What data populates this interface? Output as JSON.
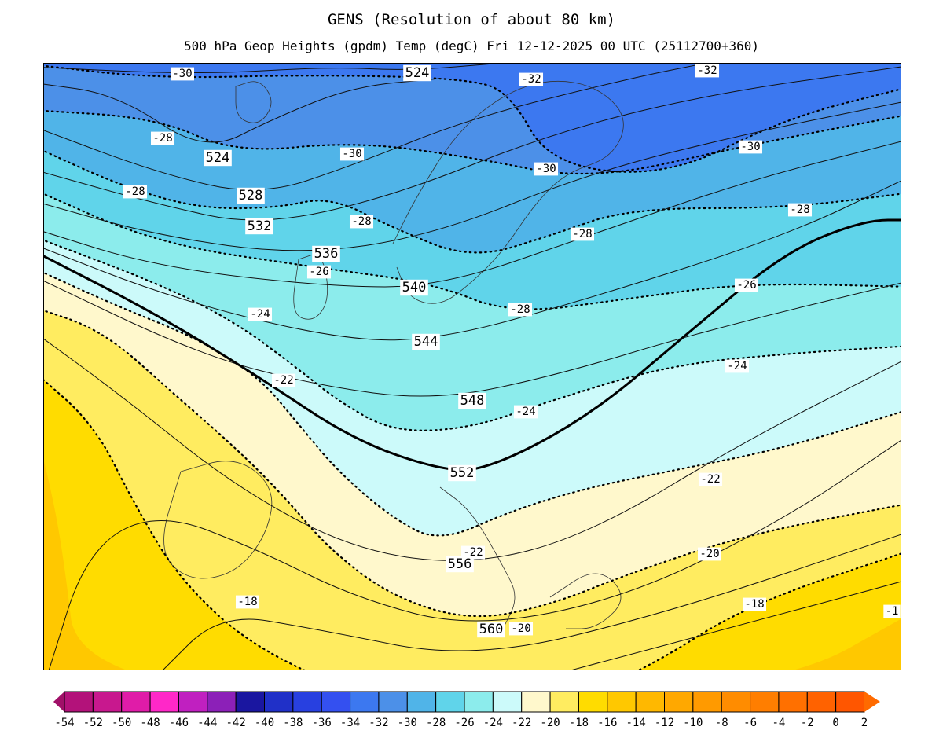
{
  "header": {
    "title": "GENS (Resolution of about 80 km)",
    "subtitle": "500 hPa Geop Heights (gpdm)  Temp (degC)   Fri 12-12-2025 00 UTC (25112700+360)"
  },
  "map": {
    "temperature_labels": [
      "-30",
      "-32",
      "-32",
      "-28",
      "-30",
      "-30",
      "-30",
      "-28",
      "-28",
      "-28",
      "-28",
      "-26",
      "-26",
      "-24",
      "-28",
      "-24",
      "-22",
      "-24",
      "-22",
      "-22",
      "-20",
      "-18",
      "-18",
      "-20",
      "-1"
    ],
    "height_labels": [
      "524",
      "524",
      "528",
      "532",
      "536",
      "540",
      "544",
      "548",
      "552",
      "556",
      "560"
    ],
    "band_colors": {
      "lt-32": "#3c78f0",
      "-32..-30": "#4c90e8",
      "-30..-28": "#50b4e8",
      "-28..-26": "#60d4ea",
      "-26..-24": "#8cecec",
      "-24..-22": "#ccfafa",
      "-22..-20": "#fff8cc",
      "-20..-18": "#ffec60",
      "-18..-16": "#ffdc00",
      "-16..-14": "#ffc800"
    }
  },
  "colorbar": {
    "ticks": [
      "-54",
      "-52",
      "-50",
      "-48",
      "-46",
      "-44",
      "-42",
      "-40",
      "-38",
      "-36",
      "-34",
      "-32",
      "-30",
      "-28",
      "-26",
      "-24",
      "-22",
      "-20",
      "-18",
      "-16",
      "-14",
      "-12",
      "-10",
      "-8",
      "-6",
      "-4",
      "-2",
      "0",
      "2"
    ],
    "colors": [
      "#b3127a",
      "#c8188e",
      "#e01ca8",
      "#ff28c8",
      "#c020c0",
      "#8c20b8",
      "#1a16a0",
      "#2030c8",
      "#2840e0",
      "#3450f0",
      "#3c78f0",
      "#4c90e8",
      "#50b4e8",
      "#60d4ea",
      "#8cecec",
      "#ccfafa",
      "#fff8cc",
      "#ffec60",
      "#ffdc00",
      "#ffc800",
      "#ffb800",
      "#ffa800",
      "#ff9a00",
      "#ff8c00",
      "#ff7e00",
      "#ff7000",
      "#ff6200",
      "#ff5600"
    ],
    "under_color": "#a01068",
    "over_color": "#ff6a00"
  }
}
